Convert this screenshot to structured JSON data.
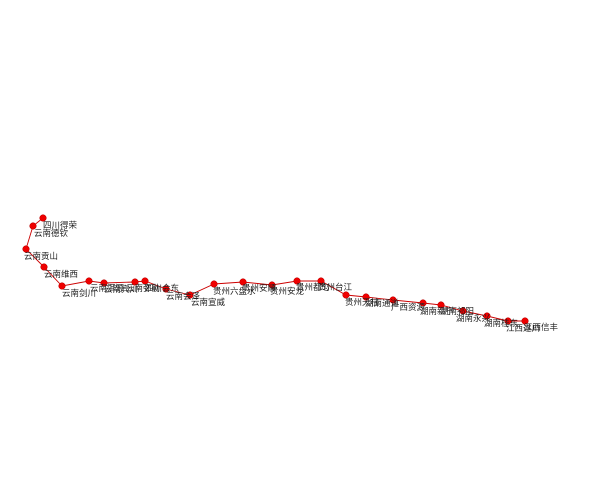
{
  "map": {
    "colors": {
      "route": "#cc0000",
      "node": "#ee0000",
      "label": "#222222",
      "background": "#ffffff"
    },
    "stations": [
      {
        "id": "s01",
        "label": "四川得荣"
      },
      {
        "id": "s02",
        "label": "云南德钦"
      },
      {
        "id": "s03",
        "label": "云南贡山"
      },
      {
        "id": "s04",
        "label": "云南维西"
      },
      {
        "id": "s05",
        "label": "云南剑川"
      },
      {
        "id": "s06",
        "label": "云南洱源"
      },
      {
        "id": "s07",
        "label": "云南宾川"
      },
      {
        "id": "s08",
        "label": "云南弥勒"
      },
      {
        "id": "s09",
        "label": "四川会东"
      },
      {
        "id": "s10",
        "label": "云南宣威"
      },
      {
        "id": "s11",
        "label": "云南会泽"
      },
      {
        "id": "s12",
        "label": "贵州六盘水"
      },
      {
        "id": "s13",
        "label": "贵州安顺"
      },
      {
        "id": "s14",
        "label": "贵州安龙"
      },
      {
        "id": "s15",
        "label": "贵州都匀"
      },
      {
        "id": "s16",
        "label": "贵州台江"
      },
      {
        "id": "s17",
        "label": "贵州天柱"
      },
      {
        "id": "s18",
        "label": "湖南通道"
      },
      {
        "id": "s19",
        "label": "广西资源"
      },
      {
        "id": "s20",
        "label": "湖南新宁"
      },
      {
        "id": "s21",
        "label": "湖南祁阳"
      },
      {
        "id": "s22",
        "label": "湖南永兴"
      },
      {
        "id": "s23",
        "label": "湖南桂东"
      },
      {
        "id": "s24",
        "label": "江西遂川"
      },
      {
        "id": "s25",
        "label": "江西信丰"
      }
    ]
  }
}
